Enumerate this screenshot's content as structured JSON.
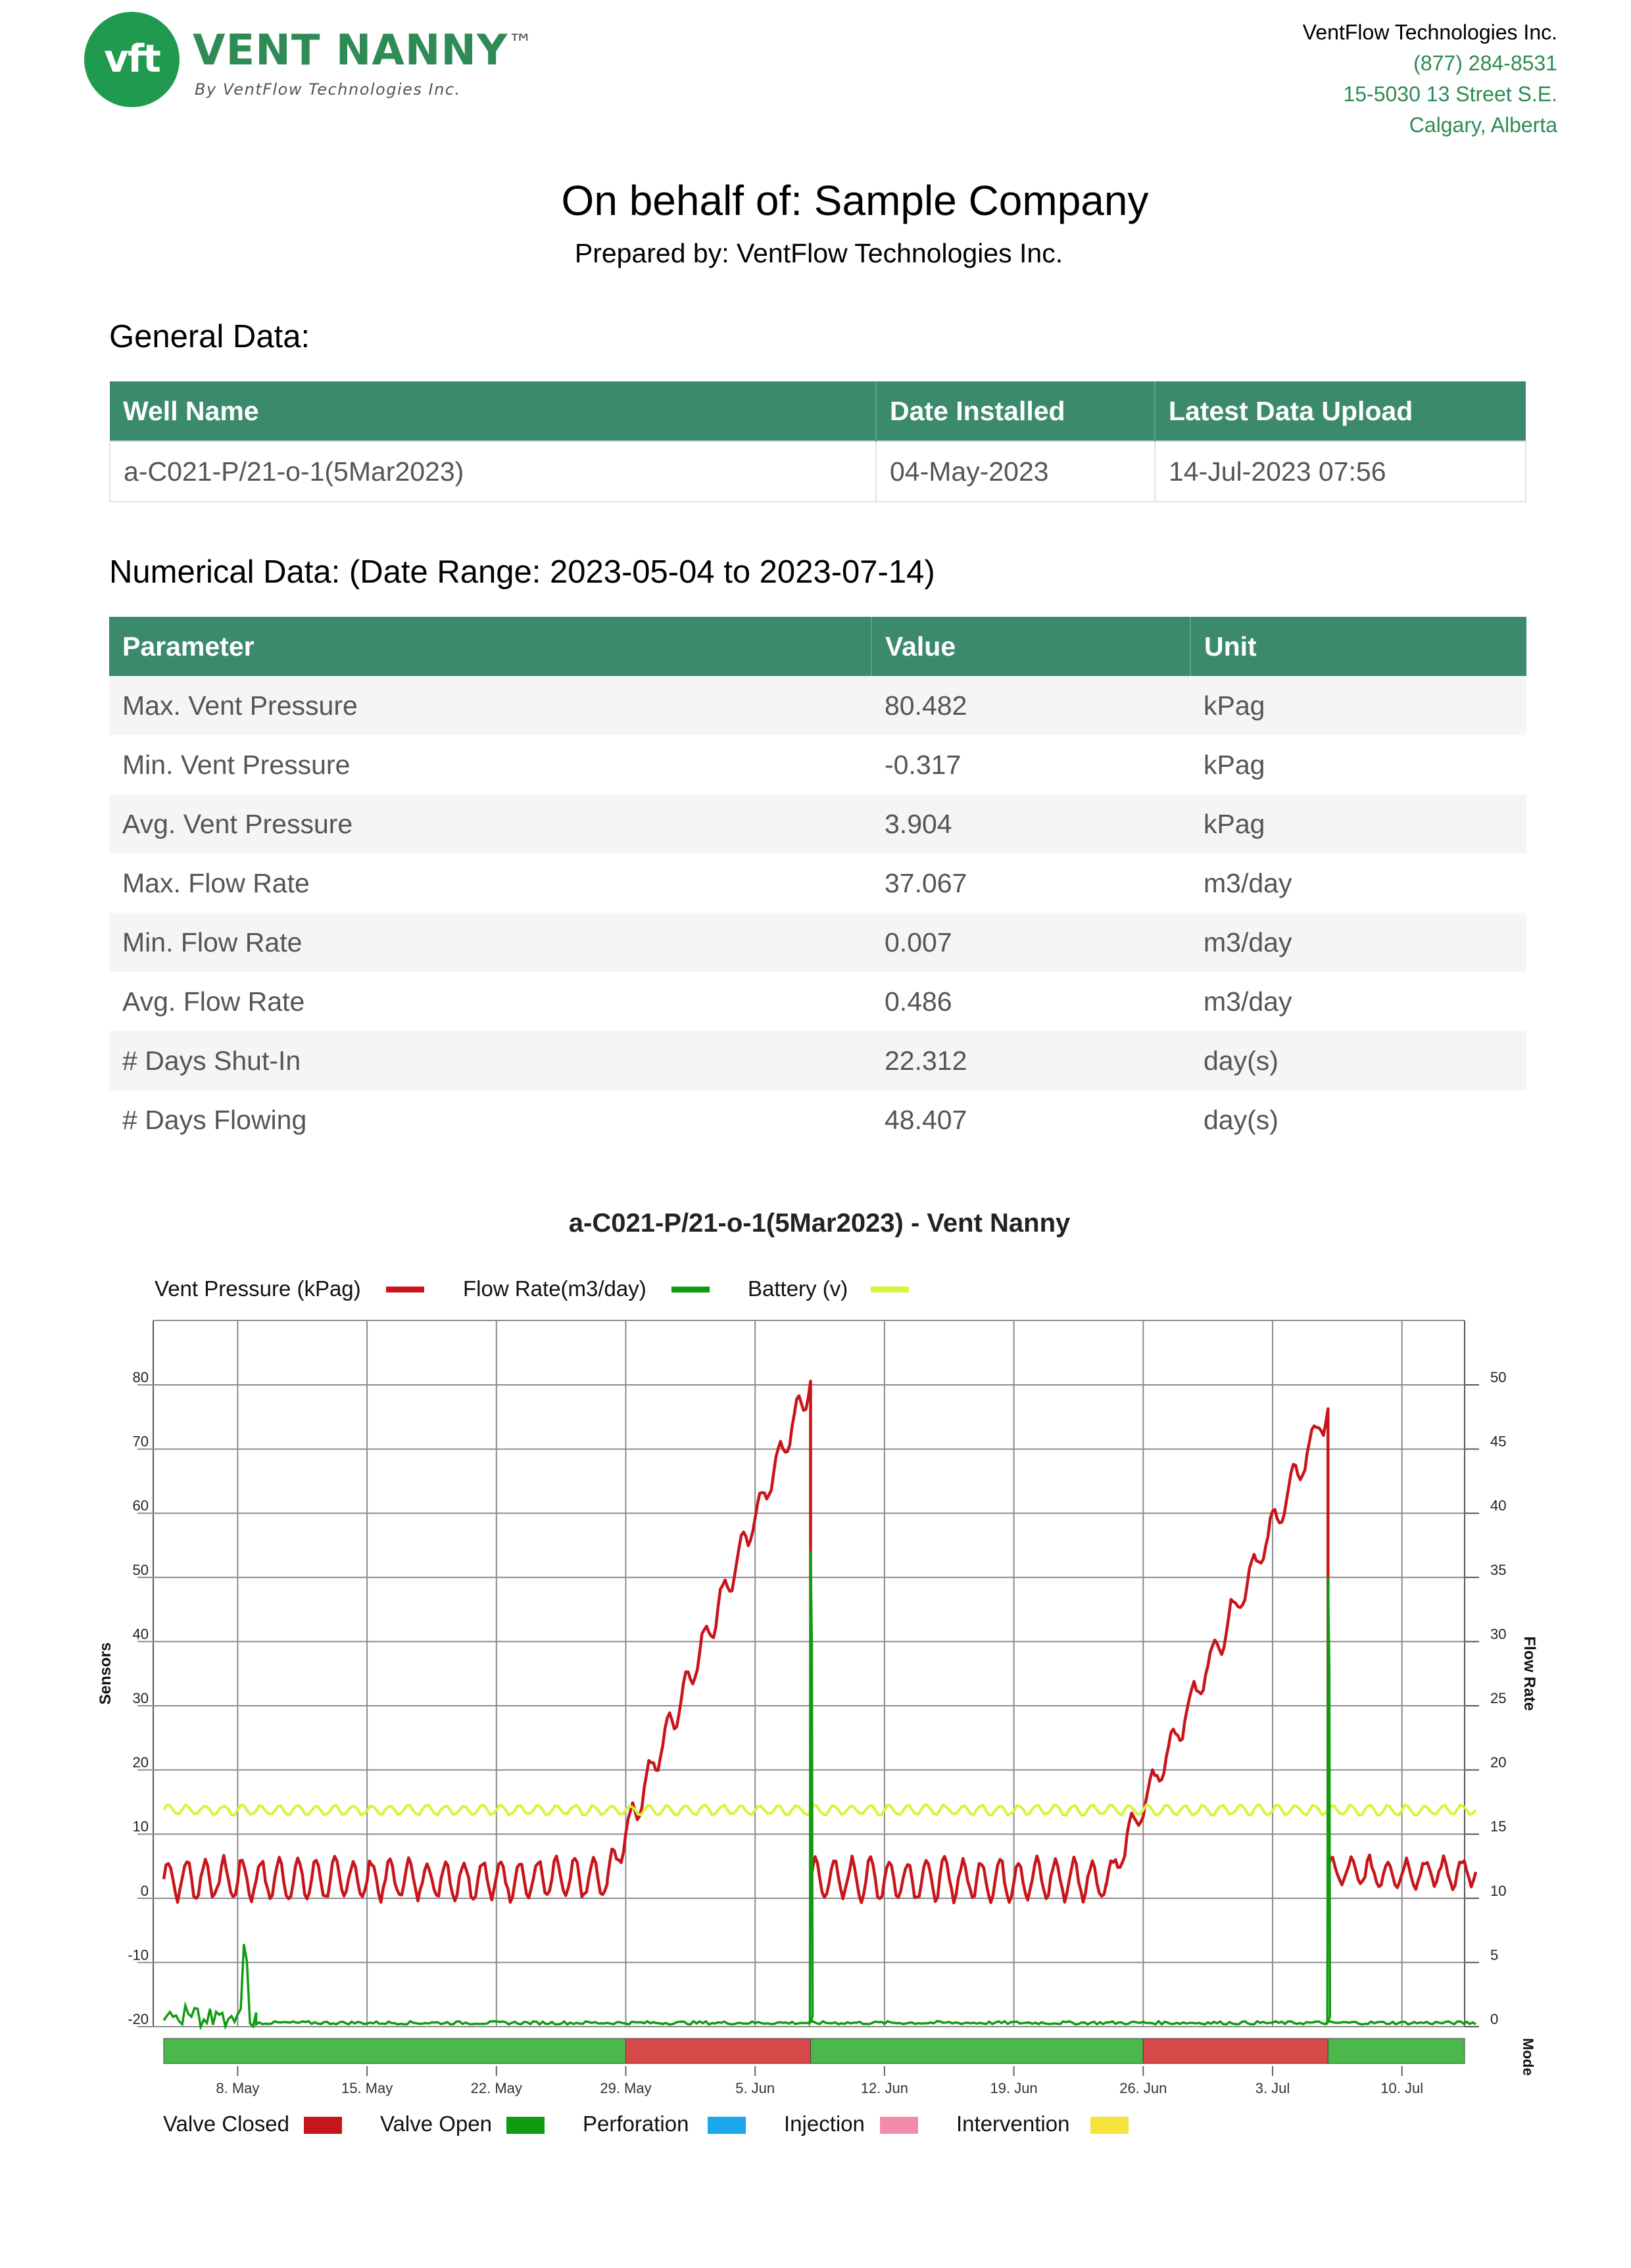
{
  "header": {
    "logo_mark": "vft",
    "logo_name": "VENT NANNY",
    "logo_tm": "™",
    "logo_tagline": "By VentFlow Technologies Inc.",
    "company_name": "VentFlow Technologies Inc.",
    "phone": "(877) 284-8531",
    "address": "15-5030 13 Street S.E.",
    "city": "Calgary, Alberta"
  },
  "title": "On behalf of: Sample Company",
  "subtitle": "Prepared by: VentFlow Technologies Inc.",
  "general": {
    "heading": "General Data:",
    "headers": [
      "Well Name",
      "Date Installed",
      "Latest Data Upload"
    ],
    "row": [
      "a-C021-P/21-o-1(5Mar2023)",
      "04-May-2023",
      "14-Jul-2023 07:56"
    ]
  },
  "numerical": {
    "heading": "Numerical Data: (Date Range: 2023-05-04 to 2023-07-14)",
    "headers": [
      "Parameter",
      "Value",
      "Unit"
    ],
    "rows": [
      [
        "Max. Vent Pressure",
        "80.482",
        "kPag"
      ],
      [
        "Min. Vent Pressure",
        "-0.317",
        "kPag"
      ],
      [
        "Avg. Vent Pressure",
        "3.904",
        "kPag"
      ],
      [
        "Max. Flow Rate",
        "37.067",
        "m3/day"
      ],
      [
        "Min. Flow Rate",
        "0.007",
        "m3/day"
      ],
      [
        "Avg. Flow Rate",
        "0.486",
        "m3/day"
      ],
      [
        "# Days Shut-In",
        "22.312",
        "day(s)"
      ],
      [
        "# Days Flowing",
        "48.407",
        "day(s)"
      ]
    ]
  },
  "chart_data": {
    "type": "line",
    "title": "a-C021-P/21-o-1(5Mar2023) - Vent Nanny",
    "ylabel": "Sensors",
    "y2label": "Flow Rate",
    "mode_label": "Mode",
    "x_ticks": [
      "8. May",
      "15. May",
      "22. May",
      "29. May",
      "5. Jun",
      "12. Jun",
      "19. Jun",
      "26. Jun",
      "3. Jul",
      "10. Jul"
    ],
    "ylim": [
      -20,
      80
    ],
    "y_ticks": [
      80,
      70,
      60,
      50,
      40,
      30,
      20,
      10,
      0,
      -10,
      -20
    ],
    "y2lim": [
      0,
      50
    ],
    "y2_ticks": [
      50,
      45,
      40,
      35,
      30,
      25,
      20,
      15,
      10,
      5,
      0
    ],
    "grid": true,
    "legend_position": "top-left",
    "colors": {
      "pressure": "#c8151b",
      "flow": "#119b11",
      "battery": "#d6f53a",
      "closed": "#d94848",
      "open": "#4cb84c",
      "grid": "#8c8c8c"
    },
    "series": [
      {
        "name": "Vent Pressure (kPag)",
        "axis": "left",
        "color": "#c8151b",
        "segments": [
          {
            "x": [
              "2023-05-04",
              "2023-05-28"
            ],
            "pattern": "oscillating",
            "range": [
              0,
              6
            ]
          },
          {
            "x": [
              "2023-05-28",
              "2023-06-08"
            ],
            "pattern": "stepped rise",
            "from": 3,
            "to": 80.5
          },
          {
            "x": [
              "2023-06-08",
              "2023-06-24"
            ],
            "pattern": "oscillating",
            "range": [
              0,
              6
            ]
          },
          {
            "x": [
              "2023-06-24",
              "2023-07-06"
            ],
            "pattern": "stepped rise",
            "from": 2,
            "to": 76.5
          },
          {
            "x": [
              "2023-07-06",
              "2023-07-14"
            ],
            "pattern": "oscillating",
            "range": [
              2,
              6
            ]
          }
        ]
      },
      {
        "name": "Flow Rate(m3/day)",
        "axis": "right",
        "color": "#119b11",
        "segments": [
          {
            "x": [
              "2023-05-04",
              "2023-05-09"
            ],
            "pattern": "noisy spikes",
            "max": 8
          },
          {
            "x": [
              "2023-05-09",
              "2023-06-08"
            ],
            "pattern": "flat",
            "value": 0.3
          },
          {
            "x": [
              "2023-06-08",
              "2023-06-08"
            ],
            "pattern": "spike",
            "max": 37.067
          },
          {
            "x": [
              "2023-06-08",
              "2023-07-06"
            ],
            "pattern": "flat",
            "value": 0.3
          },
          {
            "x": [
              "2023-07-06",
              "2023-07-06"
            ],
            "pattern": "spike",
            "max": 35
          },
          {
            "x": [
              "2023-07-06",
              "2023-07-14"
            ],
            "pattern": "flat",
            "value": 0.3
          }
        ]
      },
      {
        "name": "Battery (v)",
        "axis": "left",
        "color": "#d6f53a",
        "range": [
          13,
          14.5
        ]
      }
    ],
    "mode": [
      {
        "state": "Valve Open",
        "from": "2023-05-04",
        "to": "2023-05-29"
      },
      {
        "state": "Valve Closed",
        "from": "2023-05-29",
        "to": "2023-06-08"
      },
      {
        "state": "Valve Open",
        "from": "2023-06-08",
        "to": "2023-06-26"
      },
      {
        "state": "Valve Closed",
        "from": "2023-06-26",
        "to": "2023-07-06"
      },
      {
        "state": "Valve Open",
        "from": "2023-07-06",
        "to": "2023-07-14"
      }
    ],
    "mode_legend": [
      {
        "name": "Valve Closed",
        "color": "#c8151b"
      },
      {
        "name": "Valve Open",
        "color": "#119b11"
      },
      {
        "name": "Perforation",
        "color": "#1aa7ec"
      },
      {
        "name": "Injection",
        "color": "#f28cab"
      },
      {
        "name": "Intervention",
        "color": "#f5e23a"
      }
    ]
  }
}
